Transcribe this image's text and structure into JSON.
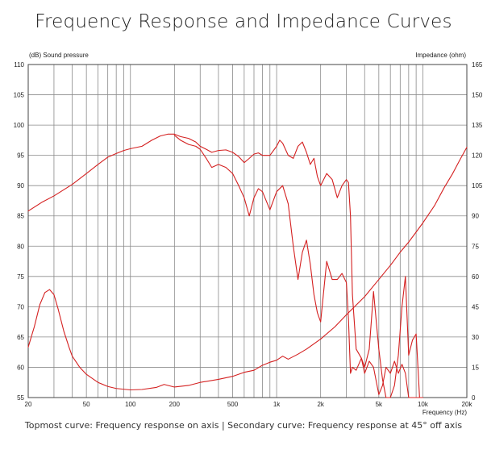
{
  "title": "Frequency Response and Impedance Curves",
  "caption": "Topmost curve: Frequency response on axis | Secondary curve: Frequency response at 45° off axis",
  "chart_data": {
    "type": "line",
    "title": "Frequency Response and Impedance Curves",
    "x_scale": "log",
    "xlim": [
      20,
      20000
    ],
    "xlabel": "Frequency  (Hz)",
    "x_ticks": [
      20,
      50,
      100,
      200,
      500,
      1000,
      2000,
      5000,
      10000,
      20000
    ],
    "x_tick_labels": [
      "20",
      "50",
      "100",
      "200",
      "500",
      "1k",
      "2k",
      "5k",
      "10k",
      "20k"
    ],
    "y_left": {
      "label": "(dB)  Sound pressure",
      "ylim": [
        55,
        110
      ],
      "ticks": [
        55,
        60,
        65,
        70,
        75,
        80,
        85,
        90,
        95,
        100,
        105,
        110
      ]
    },
    "y_right": {
      "label": "Impedance  (ohm)",
      "ylim": [
        0,
        165
      ],
      "ticks": [
        0,
        15,
        30,
        45,
        60,
        75,
        90,
        105,
        120,
        135,
        150,
        165
      ]
    },
    "grid": true,
    "line_color": "#d42020",
    "series": [
      {
        "axis": "left",
        "x": [
          20,
          25,
          30,
          40,
          50,
          60,
          70,
          80,
          90,
          100,
          120,
          140,
          160,
          180,
          200,
          220,
          250,
          280,
          300,
          330,
          360,
          400,
          450,
          500,
          550,
          600,
          650,
          700,
          750,
          800,
          900,
          1000,
          1050,
          1100,
          1200,
          1300,
          1400,
          1500,
          1600,
          1700,
          1800,
          1900,
          2000,
          2200,
          2400,
          2600,
          2800,
          3000,
          3100,
          3200,
          3300,
          3500,
          3800,
          4000,
          4300,
          4600,
          5000,
          5300,
          5600,
          6000,
          6400,
          6800,
          7200,
          7600,
          8000,
          8500,
          9000,
          9500,
          10000
        ],
        "y": [
          85.8,
          87.3,
          88.3,
          90.2,
          92.0,
          93.5,
          94.7,
          95.3,
          95.8,
          96.1,
          96.5,
          97.5,
          98.2,
          98.5,
          98.5,
          98.1,
          97.8,
          97.2,
          96.5,
          96.0,
          95.5,
          95.8,
          95.9,
          95.5,
          94.8,
          93.8,
          94.5,
          95.2,
          95.4,
          95.0,
          95.0,
          96.5,
          97.5,
          97.0,
          95.0,
          94.5,
          96.5,
          97.2,
          95.5,
          93.5,
          94.5,
          91.5,
          90.0,
          92.0,
          91.0,
          88.0,
          90.0,
          91.0,
          90.5,
          85.0,
          72.0,
          63.0,
          61.5,
          60.0,
          63.0,
          72.5,
          63.0,
          58.0,
          55.0,
          55.0,
          57.0,
          62.0,
          70.0,
          75.0,
          62.0,
          64.5,
          65.5,
          55.0,
          55.0
        ]
      },
      {
        "axis": "left",
        "x": [
          200,
          220,
          250,
          280,
          300,
          330,
          360,
          400,
          450,
          500,
          550,
          600,
          650,
          700,
          750,
          800,
          900,
          1000,
          1100,
          1200,
          1300,
          1400,
          1500,
          1600,
          1700,
          1800,
          1900,
          2000,
          2200,
          2400,
          2600,
          2800,
          3000,
          3100,
          3200,
          3300,
          3500,
          3800,
          4000,
          4300,
          4600,
          5000,
          5300,
          5600,
          6000,
          6400,
          6800,
          7200,
          7600,
          8000,
          8500,
          9000,
          9500,
          10000
        ],
        "y": [
          98.3,
          97.5,
          96.8,
          96.5,
          96.0,
          94.5,
          93.0,
          93.5,
          93.0,
          92.0,
          90.0,
          88.0,
          85.0,
          88.0,
          89.5,
          89.0,
          86.0,
          89.0,
          90.0,
          87.0,
          80.0,
          74.5,
          79.0,
          81.0,
          77.0,
          72.0,
          69.0,
          67.5,
          77.5,
          74.5,
          74.5,
          75.5,
          74.0,
          68.0,
          59.0,
          60.0,
          59.5,
          61.5,
          59.0,
          61.0,
          60.0,
          55.5,
          57.0,
          60.0,
          59.0,
          61.0,
          59.0,
          60.5,
          59.0,
          55.0,
          55.0,
          55.0,
          55.0,
          55.0
        ]
      },
      {
        "axis": "right",
        "x": [
          20,
          22,
          24,
          26,
          28,
          30,
          32,
          35,
          38,
          40,
          45,
          50,
          60,
          70,
          80,
          100,
          120,
          150,
          170,
          200,
          250,
          300,
          400,
          500,
          600,
          700,
          800,
          900,
          1000,
          1100,
          1200,
          1400,
          1600,
          2000,
          2500,
          3000,
          4000,
          5000,
          6000,
          7000,
          8000,
          9000,
          10000,
          12000,
          14000,
          16000,
          18000,
          20000
        ],
        "y": [
          25.0,
          35.0,
          46.0,
          52.0,
          53.5,
          51.0,
          44.0,
          33.0,
          25.0,
          20.5,
          15.0,
          11.5,
          7.5,
          5.5,
          4.5,
          3.8,
          4.0,
          5.0,
          6.5,
          5.2,
          6.0,
          7.5,
          9.0,
          10.5,
          12.5,
          13.5,
          16.0,
          17.5,
          18.5,
          20.5,
          19.0,
          21.5,
          24.0,
          29.0,
          35.0,
          41.0,
          50.0,
          58.5,
          65.5,
          72.0,
          77.0,
          82.0,
          86.5,
          95.0,
          104.0,
          111.0,
          118.0,
          124.0
        ]
      }
    ]
  }
}
